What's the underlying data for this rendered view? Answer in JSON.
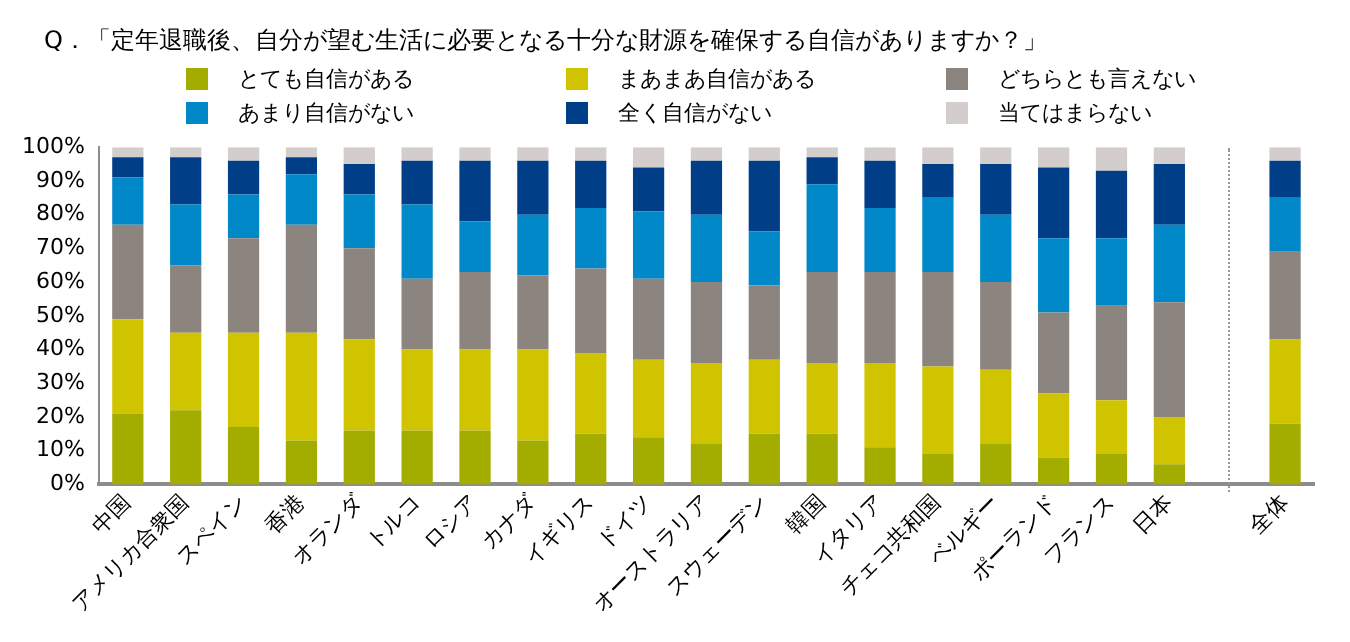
{
  "chart_data": {
    "type": "bar",
    "title": "Q．「定年退職後、自分が望む生活に必要となる十分な財源を確保する自信がありますか？」",
    "stacked": true,
    "legend": "top",
    "categories": [
      "中国",
      "アメリカ合衆国",
      "スペイン",
      "香港",
      "オランダ",
      "トルコ",
      "ロシア",
      "カナダ",
      "イギリス",
      "ドイツ",
      "オーストラリア",
      "スウェーデン",
      "韓国",
      "イタリア",
      "チェコ共和国",
      "ベルギー",
      "ポーランド",
      "フランス",
      "日本",
      null,
      "全体"
    ],
    "ylim": [
      0,
      100
    ],
    "yticks": [
      {
        "value": 0,
        "label": "0%"
      },
      {
        "value": 10,
        "label": "10%"
      },
      {
        "value": 20,
        "label": "20%"
      },
      {
        "value": 30,
        "label": "30%"
      },
      {
        "value": 40,
        "label": "40%"
      },
      {
        "value": 50,
        "label": "50%"
      },
      {
        "value": 60,
        "label": "60%"
      },
      {
        "value": 70,
        "label": "70%"
      },
      {
        "value": 80,
        "label": "80%"
      },
      {
        "value": 90,
        "label": "90%"
      },
      {
        "value": 100,
        "label": "100%"
      }
    ],
    "series": [
      {
        "name": "とても自信がある",
        "color": "#a2ad00",
        "values": [
          21,
          22,
          17,
          13,
          16,
          16,
          16,
          13,
          15,
          14,
          12,
          15,
          15,
          11,
          9,
          12,
          8,
          9,
          6,
          null,
          18
        ]
      },
      {
        "name": "まあまあ自信がある",
        "color": "#d0c300",
        "values": [
          28,
          23,
          28,
          32,
          27,
          24,
          24,
          27,
          24,
          23,
          24,
          22,
          21,
          25,
          26,
          22,
          19,
          16,
          14,
          null,
          25
        ]
      },
      {
        "name": "どちらとも言えない",
        "color": "#8c847e",
        "values": [
          28,
          20,
          28,
          32,
          27,
          21,
          23,
          22,
          25,
          24,
          24,
          22,
          27,
          27,
          28,
          26,
          24,
          28,
          34,
          null,
          26
        ]
      },
      {
        "name": "あまり自信がない",
        "color": "#0088c8",
        "values": [
          14,
          18,
          13,
          15,
          16,
          22,
          15,
          18,
          18,
          20,
          20,
          16,
          26,
          19,
          22,
          20,
          22,
          20,
          23,
          null,
          16
        ]
      },
      {
        "name": "全く自信がない",
        "color": "#003f87",
        "values": [
          6,
          14,
          10,
          5,
          9,
          13,
          18,
          16,
          14,
          13,
          16,
          21,
          8,
          14,
          10,
          15,
          21,
          20,
          18,
          null,
          11
        ]
      },
      {
        "name": "当てはまらない",
        "color": "#d3cecc",
        "values": [
          3,
          3,
          4,
          3,
          5,
          4,
          4,
          4,
          4,
          6,
          4,
          4,
          3,
          4,
          5,
          5,
          6,
          7,
          5,
          null,
          4
        ]
      }
    ]
  }
}
